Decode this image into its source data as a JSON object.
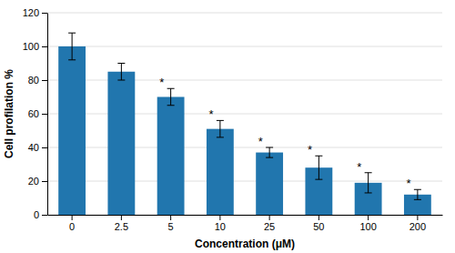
{
  "chart_data": {
    "type": "bar",
    "xlabel": "Concentration (μM)",
    "ylabel": "Cell profilation %",
    "categories": [
      "0",
      "2.5",
      "5",
      "10",
      "25",
      "50",
      "100",
      "200"
    ],
    "values": [
      100,
      85,
      70,
      51,
      37,
      28,
      19,
      12
    ],
    "errors": [
      8,
      5,
      5,
      5,
      3,
      7,
      6,
      3
    ],
    "color": "#2176AE",
    "ylim": [
      0,
      120
    ],
    "yticks": [
      0,
      20,
      40,
      60,
      80,
      100,
      120
    ],
    "grid": true,
    "annotations": [
      {
        "text": "*",
        "x": "5"
      },
      {
        "text": "*",
        "x": "10"
      },
      {
        "text": "*",
        "x": "25"
      },
      {
        "text": "*",
        "x": "50"
      },
      {
        "text": "*",
        "x": "100"
      },
      {
        "text": "*",
        "x": "200"
      }
    ]
  }
}
